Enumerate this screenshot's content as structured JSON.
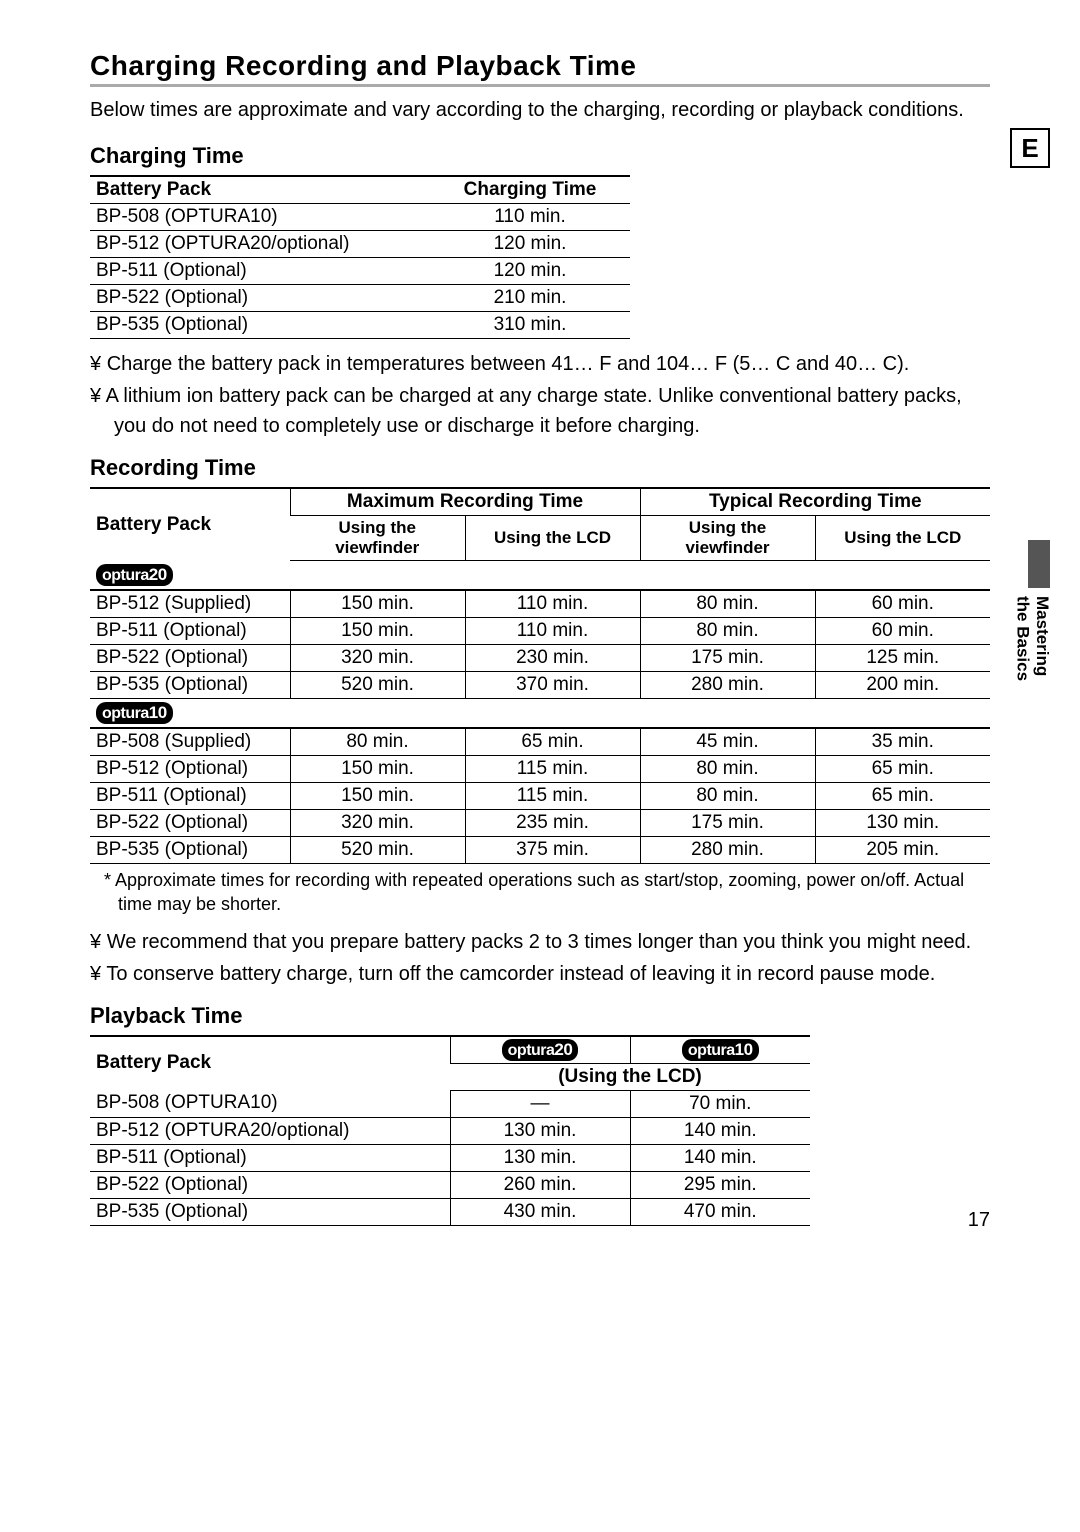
{
  "page": {
    "title": "Charging  Recording and Playback Time",
    "intro": "Below times are approximate and vary according to the charging, recording or playback conditions.",
    "side_tab": "E",
    "side_label_1": "Mastering",
    "side_label_2": "the Basics",
    "page_number": "17"
  },
  "charging": {
    "heading": "Charging Time",
    "col_battery": "Battery Pack",
    "col_time": "Charging Time",
    "rows": [
      {
        "pack": "BP-508 (OPTURA10)",
        "time": "110 min."
      },
      {
        "pack": "BP-512 (OPTURA20/optional)",
        "time": "120 min."
      },
      {
        "pack": "BP-511 (Optional)",
        "time": "120 min."
      },
      {
        "pack": "BP-522 (Optional)",
        "time": "210 min."
      },
      {
        "pack": "BP-535 (Optional)",
        "time": "310 min."
      }
    ],
    "notes": [
      "Charge the battery pack in temperatures between 41… F and 104… F (5… C and 40… C).",
      "A lithium ion battery pack can be charged at any charge state. Unlike conventional battery packs, you do not need to completely use or discharge it before charging."
    ]
  },
  "recording": {
    "heading": "Recording Time",
    "col_battery": "Battery Pack",
    "col_max": "Maximum Recording Time",
    "col_typ": "Typical Recording Time",
    "sub_vf": "Using the viewfinder",
    "sub_lcd": "Using the LCD",
    "model20_prefix": "optura",
    "model20_num": "20",
    "model10_prefix": "optura",
    "model10_num": "10",
    "rows20": [
      {
        "pack": "BP-512 (Supplied)",
        "v": [
          "150 min.",
          "110 min.",
          "80 min.",
          "60 min."
        ]
      },
      {
        "pack": "BP-511 (Optional)",
        "v": [
          "150 min.",
          "110 min.",
          "80 min.",
          "60 min."
        ]
      },
      {
        "pack": "BP-522 (Optional)",
        "v": [
          "320 min.",
          "230 min.",
          "175 min.",
          "125 min."
        ]
      },
      {
        "pack": "BP-535 (Optional)",
        "v": [
          "520 min.",
          "370 min.",
          "280 min.",
          "200 min."
        ]
      }
    ],
    "rows10": [
      {
        "pack": "BP-508 (Supplied)",
        "v": [
          "80 min.",
          "65 min.",
          "45 min.",
          "35 min."
        ]
      },
      {
        "pack": "BP-512 (Optional)",
        "v": [
          "150 min.",
          "115 min.",
          "80 min.",
          "65 min."
        ]
      },
      {
        "pack": "BP-511 (Optional)",
        "v": [
          "150 min.",
          "115 min.",
          "80 min.",
          "65 min."
        ]
      },
      {
        "pack": "BP-522 (Optional)",
        "v": [
          "320 min.",
          "235 min.",
          "175 min.",
          "130 min."
        ]
      },
      {
        "pack": "BP-535 (Optional)",
        "v": [
          "520 min.",
          "375 min.",
          "280 min.",
          "205 min."
        ]
      }
    ],
    "footnote": "*  Approximate times for recording with repeated operations such as start/stop, zooming, power on/off. Actual time may be shorter.",
    "notes": [
      "We recommend that you prepare battery packs 2 to 3 times longer than you think you might need.",
      "To conserve battery charge, turn off the camcorder instead of leaving it in record pause mode."
    ]
  },
  "playback": {
    "heading": "Playback Time",
    "col_battery": "Battery Pack",
    "sub_lcd": "(Using the LCD)",
    "rows": [
      {
        "pack": "BP-508 (OPTURA10)",
        "o20": "—",
        "o10": "70 min."
      },
      {
        "pack": "BP-512 (OPTURA20/optional)",
        "o20": "130 min.",
        "o10": "140 min."
      },
      {
        "pack": "BP-511 (Optional)",
        "o20": "130 min.",
        "o10": "140 min."
      },
      {
        "pack": "BP-522 (Optional)",
        "o20": "260 min.",
        "o10": "295 min."
      },
      {
        "pack": "BP-535 (Optional)",
        "o20": "430 min.",
        "o10": "470 min."
      }
    ]
  }
}
